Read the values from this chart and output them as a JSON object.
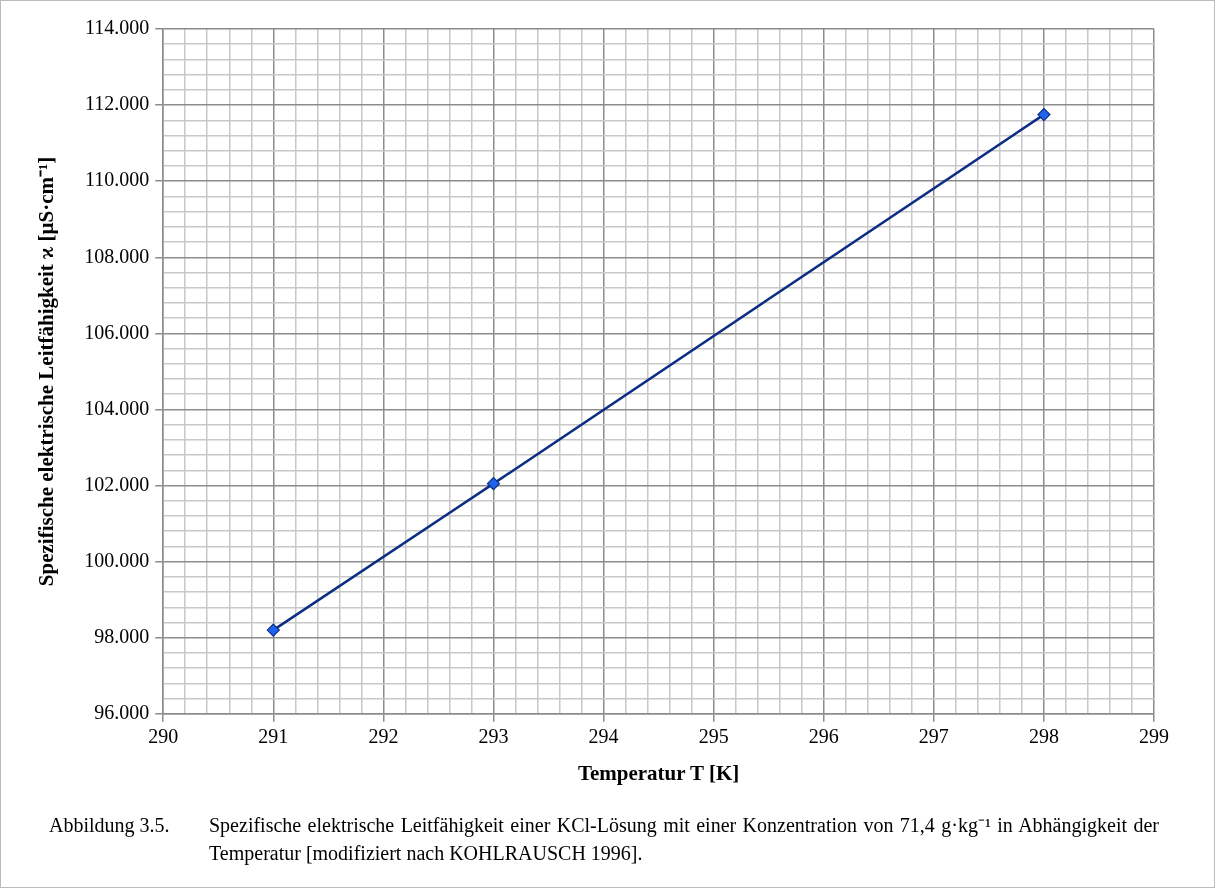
{
  "chart_data": {
    "type": "line",
    "xlabel": "Temperatur T [K]",
    "ylabel": "Spezifische elektrische Leitfähigkeit ϰ [µS·cm⁻¹]",
    "annotations": [
      "Abbildung 3.5.",
      "Spezifische elektrische Leitfähigkeit einer KCl-Lösung mit einer Konzentration von 71,4 g·kg⁻¹ in Abhängigkeit der Temperatur [modifiziert nach KOHLRAUSCH 1996]."
    ],
    "x": [
      291,
      293,
      298
    ],
    "series": [
      {
        "color": "#0b2d84",
        "values": [
          98.2,
          102.05,
          111.75
        ]
      }
    ],
    "marker": "diamond",
    "line_style": "solid",
    "grid": true,
    "legend": false,
    "xlim": [
      290,
      299
    ],
    "xticks": [
      290,
      {
        "value": 290.2,
        "label": null
      },
      {
        "value": 290.4,
        "label": null
      },
      {
        "value": 290.6,
        "label": null
      },
      {
        "value": 290.8,
        "label": null
      },
      291,
      {
        "value": 291.2,
        "label": null
      },
      {
        "value": 291.4,
        "label": null
      },
      {
        "value": 291.6,
        "label": null
      },
      {
        "value": 291.8,
        "label": null
      },
      292,
      {
        "value": 292.2,
        "label": null
      },
      {
        "value": 292.4,
        "label": null
      },
      {
        "value": 292.6,
        "label": null
      },
      {
        "value": 292.8,
        "label": null
      },
      293,
      {
        "value": 293.2,
        "label": null
      },
      {
        "value": 293.4,
        "label": null
      },
      {
        "value": 293.6,
        "label": null
      },
      {
        "value": 293.8,
        "label": null
      },
      294,
      {
        "value": 294.2,
        "label": null
      },
      {
        "value": 294.4,
        "label": null
      },
      {
        "value": 294.6,
        "label": null
      },
      {
        "value": 294.8,
        "label": null
      },
      295,
      {
        "value": 295.2,
        "label": null
      },
      {
        "value": 295.4,
        "label": null
      },
      {
        "value": 295.6,
        "label": null
      },
      {
        "value": 295.8,
        "label": null
      },
      296,
      {
        "value": 296.2,
        "label": null
      },
      {
        "value": 296.4,
        "label": null
      },
      {
        "value": 296.6,
        "label": null
      },
      {
        "value": 296.8,
        "label": null
      },
      297,
      {
        "value": 297.2,
        "label": null
      },
      {
        "value": 297.4,
        "label": null
      },
      {
        "value": 297.6,
        "label": null
      },
      {
        "value": 297.8,
        "label": null
      },
      298,
      {
        "value": 298.2,
        "label": null
      },
      {
        "value": 298.4,
        "label": null
      },
      {
        "value": 298.6,
        "label": null
      },
      {
        "value": 298.8,
        "label": null
      },
      299
    ],
    "ylim": [
      96,
      114
    ],
    "yticks": [
      {
        "value": 96,
        "label": "96.000"
      },
      {
        "value": 96.4,
        "label": null
      },
      {
        "value": 96.8,
        "label": null
      },
      {
        "value": 97.2,
        "label": null
      },
      {
        "value": 97.6,
        "label": null
      },
      {
        "value": 98,
        "label": "98.000"
      },
      {
        "value": 98.4,
        "label": null
      },
      {
        "value": 98.8,
        "label": null
      },
      {
        "value": 99.2,
        "label": null
      },
      {
        "value": 99.6,
        "label": null
      },
      {
        "value": 100,
        "label": "100.000"
      },
      {
        "value": 100.4,
        "label": null
      },
      {
        "value": 100.8,
        "label": null
      },
      {
        "value": 101.2,
        "label": null
      },
      {
        "value": 101.6,
        "label": null
      },
      {
        "value": 102,
        "label": "102.000"
      },
      {
        "value": 102.4,
        "label": null
      },
      {
        "value": 102.8,
        "label": null
      },
      {
        "value": 103.2,
        "label": null
      },
      {
        "value": 103.6,
        "label": null
      },
      {
        "value": 104,
        "label": "104.000"
      },
      {
        "value": 104.4,
        "label": null
      },
      {
        "value": 104.8,
        "label": null
      },
      {
        "value": 105.2,
        "label": null
      },
      {
        "value": 105.6,
        "label": null
      },
      {
        "value": 106,
        "label": "106.000"
      },
      {
        "value": 106.4,
        "label": null
      },
      {
        "value": 106.8,
        "label": null
      },
      {
        "value": 107.2,
        "label": null
      },
      {
        "value": 107.6,
        "label": null
      },
      {
        "value": 108,
        "label": "108.000"
      },
      {
        "value": 108.4,
        "label": null
      },
      {
        "value": 108.8,
        "label": null
      },
      {
        "value": 109.2,
        "label": null
      },
      {
        "value": 109.6,
        "label": null
      },
      {
        "value": 110,
        "label": "110.000"
      },
      {
        "value": 110.4,
        "label": null
      },
      {
        "value": 110.8,
        "label": null
      },
      {
        "value": 111.2,
        "label": null
      },
      {
        "value": 111.6,
        "label": null
      },
      {
        "value": 112,
        "label": "112.000"
      },
      {
        "value": 112.4,
        "label": null
      },
      {
        "value": 112.8,
        "label": null
      },
      {
        "value": 113.2,
        "label": null
      },
      {
        "value": 113.6,
        "label": null
      },
      {
        "value": 114,
        "label": "114.000"
      }
    ]
  }
}
